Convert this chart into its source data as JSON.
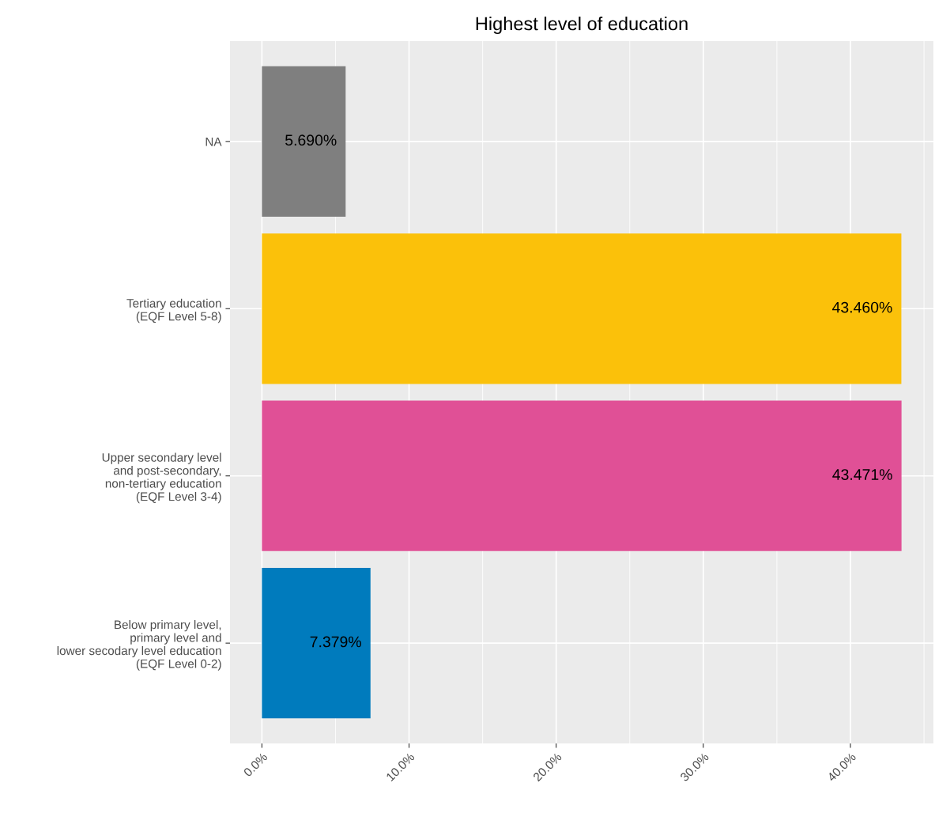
{
  "chart_data": {
    "type": "bar",
    "orientation": "horizontal",
    "title": "Highest level of education",
    "categories": [
      "NA",
      "Tertiary education\n(EQF Level 5-8)",
      "Upper secondary level\nand post-secondary,\nnon-tertiary education\n(EQF Level 3-4)",
      "Below primary level,\nprimary level and\nlower secodary level education\n(EQF Level 0-2)"
    ],
    "values": [
      5.69,
      43.46,
      43.471,
      7.379
    ],
    "colors": [
      "#7f7f7f",
      "#fbc10a",
      "#e05096",
      "#007bbd"
    ],
    "value_labels": [
      "5.690%",
      "43.460%",
      "43.471%",
      "7.379%"
    ],
    "xlim": [
      -2.17,
      45.64
    ],
    "xticks": [
      {
        "value": 0,
        "label": "0.0%"
      },
      {
        "value": 10,
        "label": "10.0%"
      },
      {
        "value": 20,
        "label": "20.0%"
      },
      {
        "value": 30,
        "label": "30.0%"
      },
      {
        "value": 40,
        "label": "40.0%"
      }
    ],
    "grid": true,
    "legend": false
  }
}
